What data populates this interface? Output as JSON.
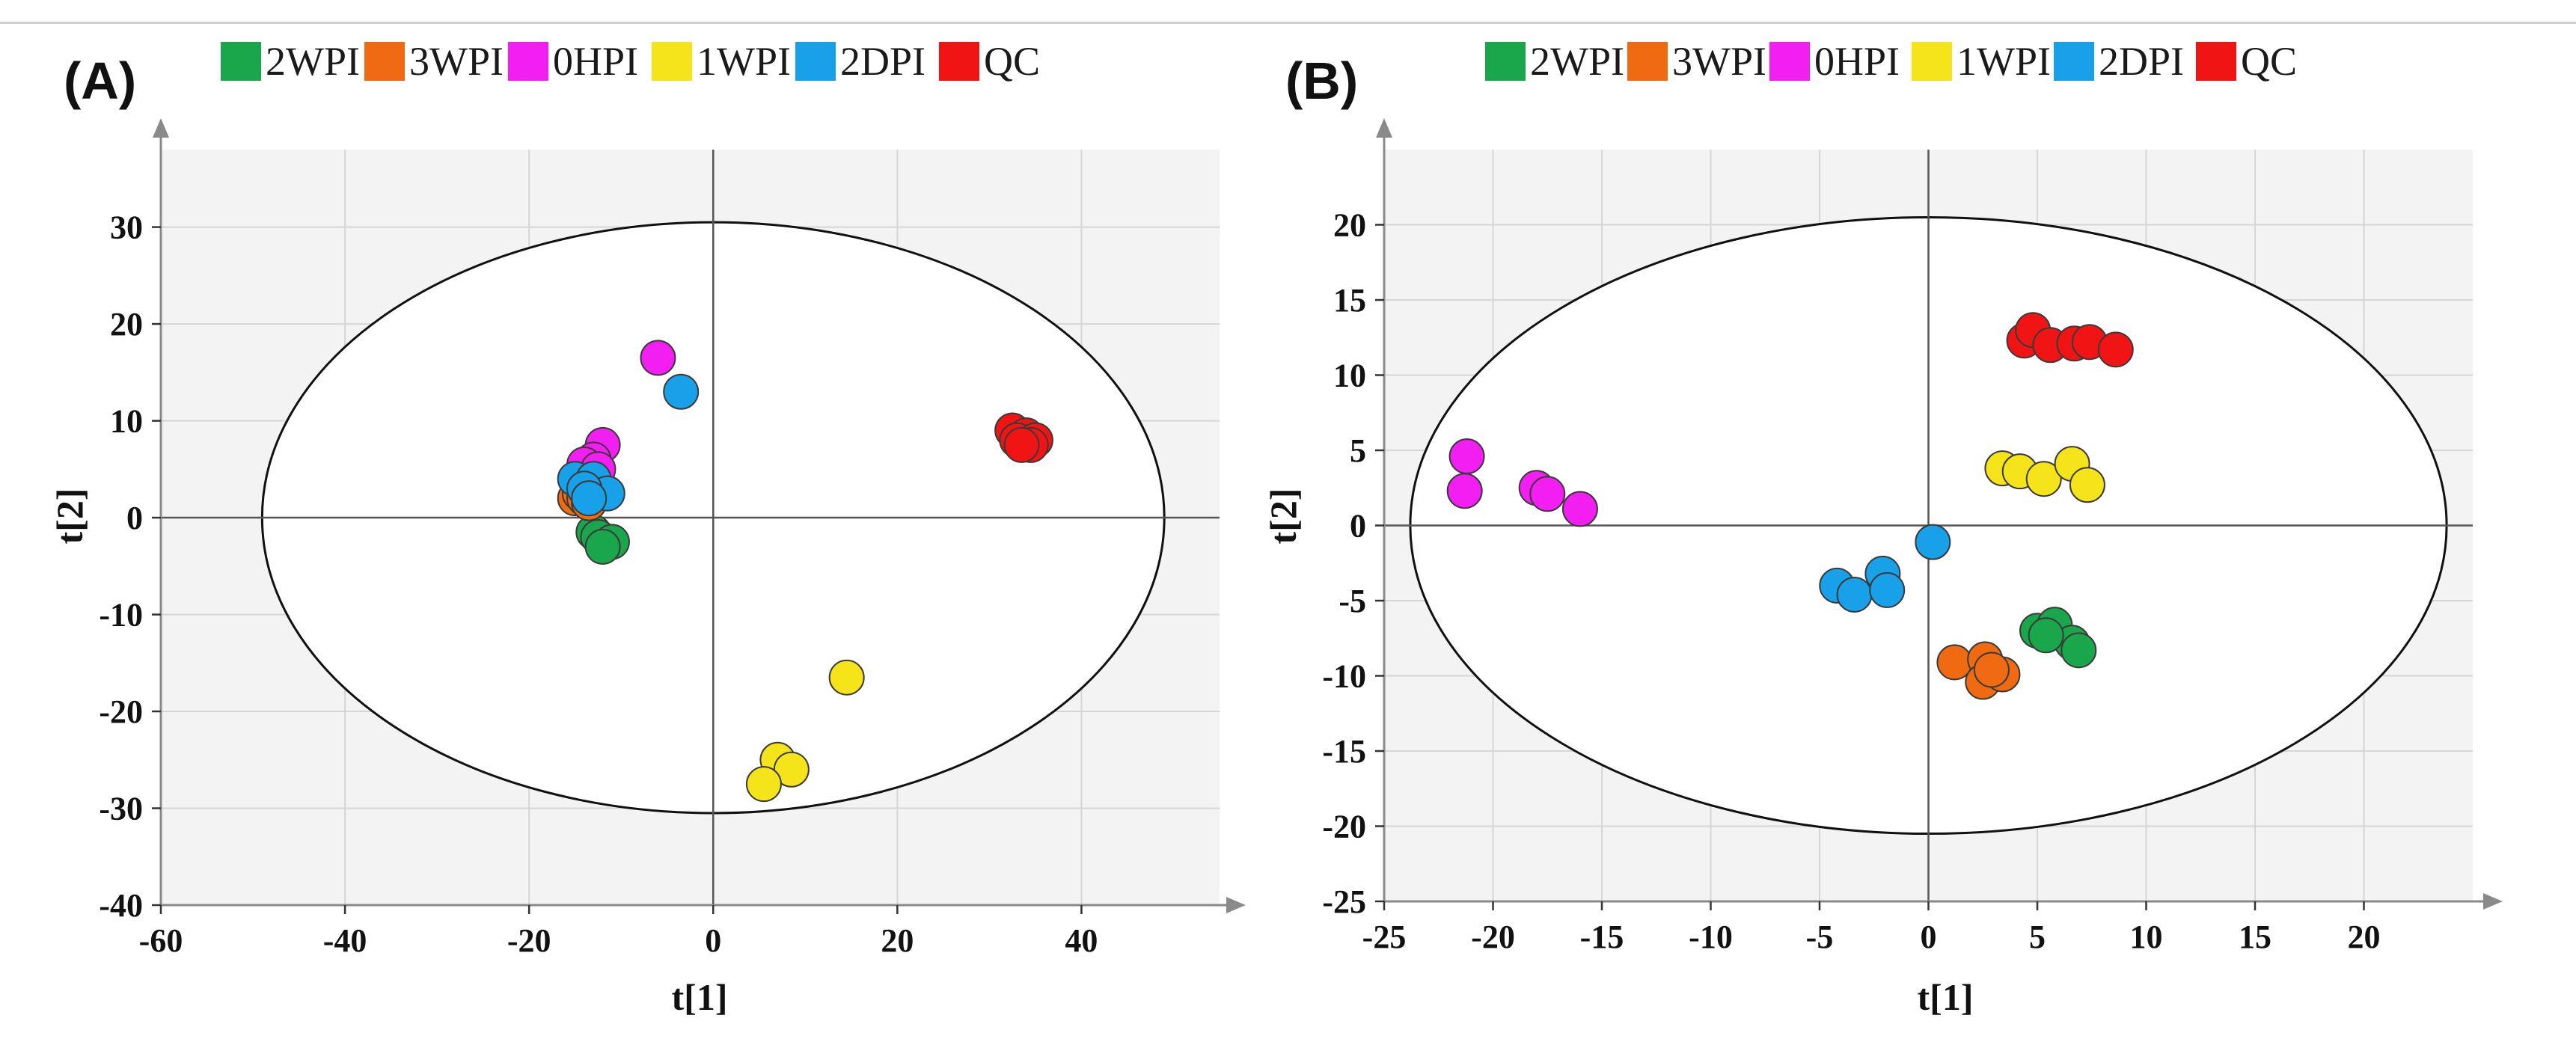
{
  "legend_colors": {
    "2WPI": "#1aa64a",
    "3WPI": "#f06a12",
    "0HPI": "#f21ef2",
    "1WPI": "#f5e41a",
    "2DPI": "#18a0e8",
    "QC": "#f01414"
  },
  "chart_data": [
    {
      "panel_label": "(A)",
      "type": "scatter",
      "xlabel": "t[1]",
      "ylabel": "t[2]",
      "xlim": [
        -60,
        55
      ],
      "ylim": [
        -40,
        38
      ],
      "xticks": [
        -60,
        -40,
        -20,
        0,
        20,
        40
      ],
      "yticks": [
        -40,
        -30,
        -20,
        -10,
        0,
        10,
        20,
        30
      ],
      "xtick_labels": [
        "-60",
        "-40",
        "-20",
        "0",
        "20",
        "40"
      ],
      "ytick_labels": [
        "-40",
        "-30",
        "-20",
        "-10",
        "0",
        "10",
        "20",
        "30"
      ],
      "grid": true,
      "ellipse": {
        "rx": 49,
        "ry": 30.5
      },
      "legend": [
        "2WPI",
        "3WPI",
        "0HPI",
        "1WPI",
        "2DPI",
        "QC"
      ],
      "series": [
        {
          "name": "2WPI",
          "points": [
            [
              -13,
              -1.5
            ],
            [
              -12.5,
              -2
            ],
            [
              -11,
              -2.5
            ],
            [
              -12,
              -3
            ]
          ]
        },
        {
          "name": "3WPI",
          "points": [
            [
              -15,
              2
            ],
            [
              -14.5,
              2.5
            ],
            [
              -14,
              3
            ],
            [
              -14,
              2
            ],
            [
              -13.5,
              1.5
            ]
          ]
        },
        {
          "name": "0HPI",
          "points": [
            [
              -6,
              16.5
            ],
            [
              -12,
              7.5
            ],
            [
              -13,
              6
            ],
            [
              -14,
              5.5
            ],
            [
              -12.5,
              5
            ]
          ]
        },
        {
          "name": "1WPI",
          "points": [
            [
              14.5,
              -16.5
            ],
            [
              7,
              -25
            ],
            [
              8.5,
              -26
            ],
            [
              5.5,
              -27.5
            ]
          ]
        },
        {
          "name": "2DPI",
          "points": [
            [
              -3.5,
              13
            ],
            [
              -15,
              4
            ],
            [
              -13,
              4
            ],
            [
              -11.5,
              2.5
            ],
            [
              -14,
              3
            ],
            [
              -13.5,
              2
            ]
          ]
        },
        {
          "name": "QC",
          "points": [
            [
              32.5,
              9
            ],
            [
              34,
              8.5
            ],
            [
              33,
              8
            ],
            [
              35,
              8
            ],
            [
              34.5,
              7.5
            ],
            [
              33.5,
              7.5
            ]
          ]
        }
      ]
    },
    {
      "panel_label": "(B)",
      "type": "scatter",
      "xlabel": "t[1]",
      "ylabel": "t[2]",
      "xlim": [
        -25,
        25
      ],
      "ylim": [
        -25,
        25
      ],
      "xticks": [
        -25,
        -20,
        -15,
        -10,
        -5,
        0,
        5,
        10,
        15,
        20
      ],
      "yticks": [
        -25,
        -20,
        -15,
        -10,
        -5,
        0,
        5,
        10,
        15,
        20
      ],
      "xtick_labels": [
        "-25",
        "-20",
        "-15",
        "-10",
        "-5",
        "0",
        "5",
        "10",
        "15",
        "20"
      ],
      "ytick_labels": [
        "-25",
        "-20",
        "-15",
        "-10",
        "-5",
        "0",
        "5",
        "10",
        "15",
        "20"
      ],
      "grid": true,
      "ellipse": {
        "rx": 23.8,
        "ry": 20.5
      },
      "legend": [
        "2WPI",
        "3WPI",
        "0HPI",
        "1WPI",
        "2DPI",
        "QC"
      ],
      "series": [
        {
          "name": "2WPI",
          "points": [
            [
              5,
              -7
            ],
            [
              5.8,
              -6.6
            ],
            [
              6.6,
              -7.8
            ],
            [
              6.9,
              -8.3
            ],
            [
              5.4,
              -7.3
            ]
          ]
        },
        {
          "name": "3WPI",
          "points": [
            [
              1.2,
              -9.1
            ],
            [
              2.6,
              -8.9
            ],
            [
              2.5,
              -10.4
            ],
            [
              3.4,
              -9.9
            ],
            [
              2.9,
              -9.6
            ]
          ]
        },
        {
          "name": "0HPI",
          "points": [
            [
              -21.2,
              4.6
            ],
            [
              -21.3,
              2.3
            ],
            [
              -18,
              2.5
            ],
            [
              -17.5,
              2.1
            ],
            [
              -16,
              1.1
            ]
          ]
        },
        {
          "name": "1WPI",
          "points": [
            [
              3.4,
              3.8
            ],
            [
              4.2,
              3.6
            ],
            [
              5.3,
              3.1
            ],
            [
              6.6,
              4.1
            ],
            [
              7.3,
              2.7
            ]
          ]
        },
        {
          "name": "2DPI",
          "points": [
            [
              0.2,
              -1.1
            ],
            [
              -4.2,
              -4
            ],
            [
              -3.4,
              -4.6
            ],
            [
              -2.1,
              -3.2
            ],
            [
              -1.9,
              -4.3
            ]
          ]
        },
        {
          "name": "QC",
          "points": [
            [
              4.4,
              12.3
            ],
            [
              4.8,
              13
            ],
            [
              5.6,
              12
            ],
            [
              6.7,
              12.1
            ],
            [
              7.4,
              12.2
            ],
            [
              8.6,
              11.7
            ]
          ]
        }
      ]
    }
  ]
}
